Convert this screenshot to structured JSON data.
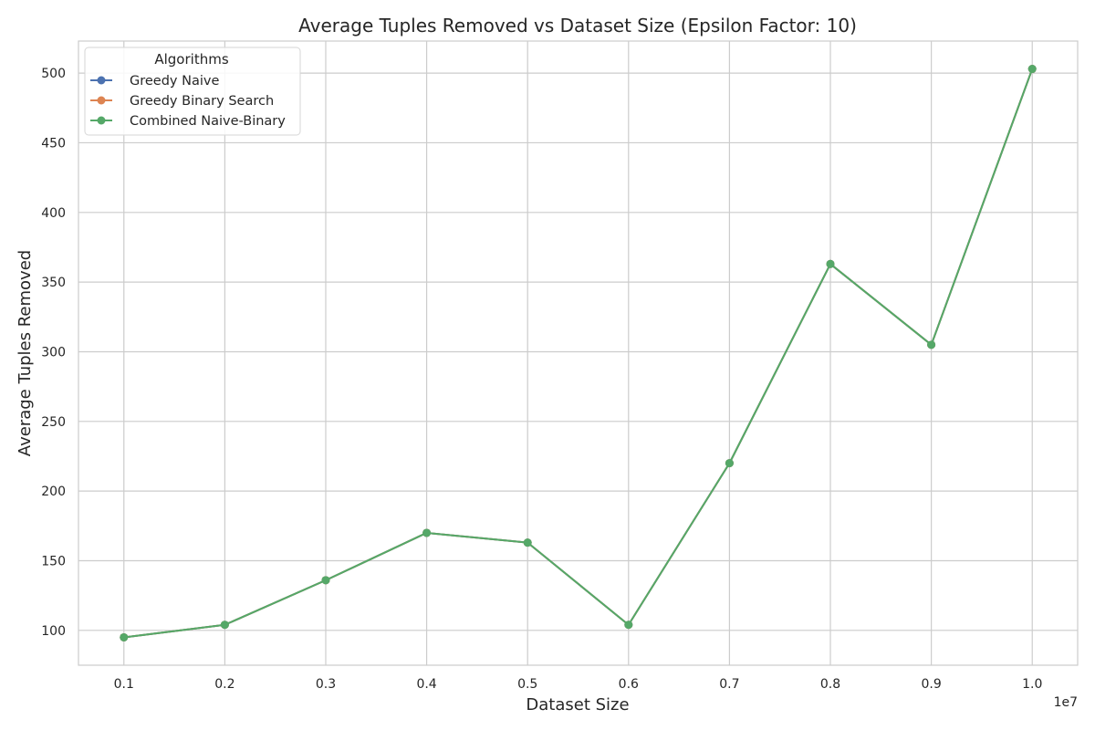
{
  "chart_data": {
    "type": "line",
    "title": "Average Tuples Removed vs Dataset Size (Epsilon Factor: 10)",
    "xlabel": "Dataset Size",
    "ylabel": "Average Tuples Removed",
    "x_offset_label": "1e7",
    "x": [
      0.1,
      0.2,
      0.3,
      0.4,
      0.5,
      0.6,
      0.7,
      0.8,
      0.9,
      1.0
    ],
    "x_ticks": [
      0.1,
      0.2,
      0.3,
      0.4,
      0.5,
      0.6,
      0.7,
      0.8,
      0.9,
      1.0
    ],
    "x_tick_labels": [
      "0.1",
      "0.2",
      "0.3",
      "0.4",
      "0.5",
      "0.6",
      "0.7",
      "0.8",
      "0.9",
      "1.0"
    ],
    "xlim": [
      0.055,
      1.045
    ],
    "y_ticks": [
      100,
      150,
      200,
      250,
      300,
      350,
      400,
      450,
      500
    ],
    "y_tick_labels": [
      "100",
      "150",
      "200",
      "250",
      "300",
      "350",
      "400",
      "450",
      "500"
    ],
    "ylim": [
      75,
      523
    ],
    "grid": true,
    "legend": {
      "title": "Algorithms",
      "placement": "top-left"
    },
    "series": [
      {
        "name": "Greedy Naive",
        "color": "#4c72b0",
        "values": [
          95,
          104,
          136,
          170,
          163,
          104,
          220,
          363,
          305,
          503
        ]
      },
      {
        "name": "Greedy Binary Search",
        "color": "#dd8452",
        "values": [
          95,
          104,
          136,
          170,
          163,
          104,
          220,
          363,
          305,
          503
        ]
      },
      {
        "name": "Combined Naive-Binary",
        "color": "#55a868",
        "values": [
          95,
          104,
          136,
          170,
          163,
          104,
          220,
          363,
          305,
          503
        ]
      }
    ]
  }
}
